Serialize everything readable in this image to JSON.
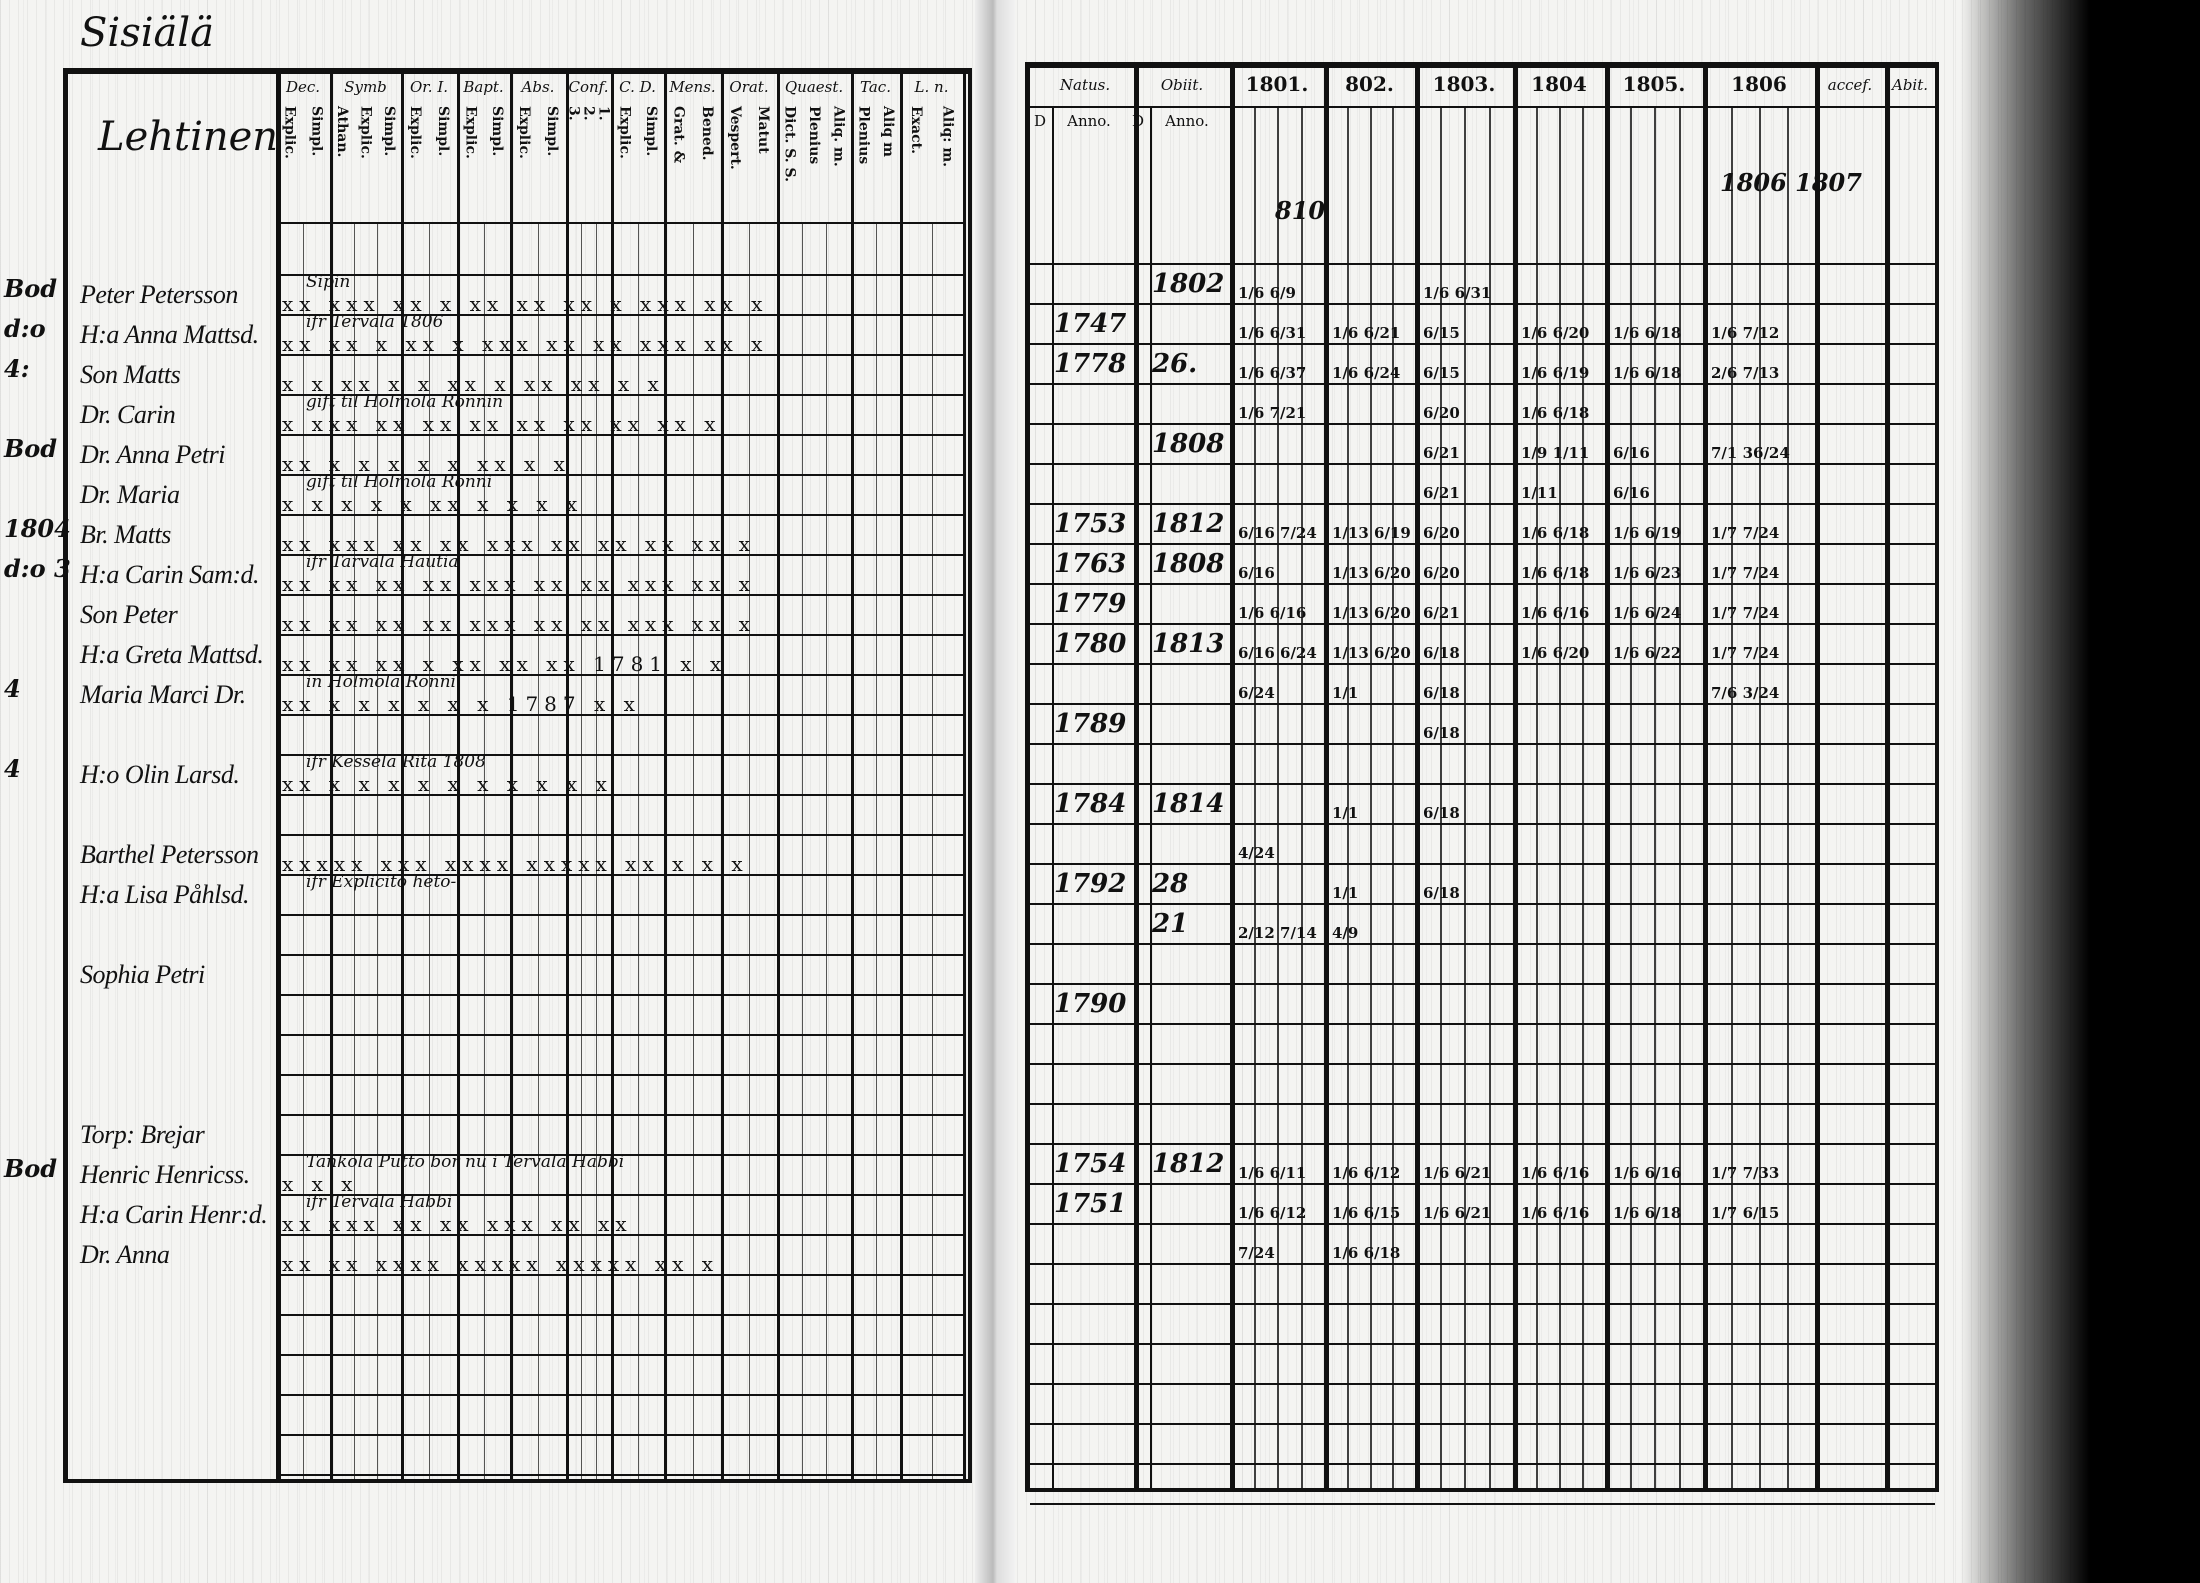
{
  "left_page": {
    "place_title": "Sisiälä",
    "house_name": "Lehtinen",
    "column_groups": [
      {
        "label": "Dec.",
        "subs": [
          "Explic.",
          "Simpl."
        ]
      },
      {
        "label": "Symb",
        "subs": [
          "Athan.",
          "Explic.",
          "Simpl."
        ]
      },
      {
        "label": "Or. I.",
        "subs": [
          "Explic.",
          "Simpl."
        ]
      },
      {
        "label": "Bapt.",
        "subs": [
          "Explic.",
          "Simpl."
        ]
      },
      {
        "label": "Abs.",
        "subs": [
          "Explic.",
          "Simpl."
        ]
      },
      {
        "label": "Conf.",
        "subs": [
          "3.",
          "2.",
          "1."
        ]
      },
      {
        "label": "C. D.",
        "subs": [
          "Explic.",
          "Simpl."
        ]
      },
      {
        "label": "Mens.",
        "subs": [
          "Grat. &",
          "Bened."
        ]
      },
      {
        "label": "Orat.",
        "subs": [
          "Vespert.",
          "Matut"
        ]
      },
      {
        "label": "Quaest.",
        "subs": [
          "Dict. S. S.",
          "Plenius",
          "Aliq. m."
        ]
      },
      {
        "label": "Tac.",
        "subs": [
          "Plenius",
          "Aliq m"
        ]
      },
      {
        "label": "L. n.",
        "subs": [
          "Exact.",
          "Aliq: m."
        ]
      }
    ],
    "rows": [
      {
        "name": "",
        "marks": "",
        "note": "",
        "margin": ""
      },
      {
        "name": "Peter Petersson",
        "marks": "xx xxx xx x xx xx xx x  xxx xx x",
        "note": "Sipin",
        "margin": "Bod"
      },
      {
        "name": "H:a Anna Mattsd.",
        "marks": "xx xx x xx x xxx xx xx xxx xx x",
        "note": "ifr Tervala 1806",
        "margin": "d:o"
      },
      {
        "name": "Son Matts",
        "marks": "x x  xx x x  xx x  xx xx    x x",
        "note": "",
        "margin": "4:"
      },
      {
        "name": "Dr. Carin",
        "marks": "x xxx xx xx xx xx xx xx   xx x",
        "note": "gift til Holmola Rönnin",
        "margin": ""
      },
      {
        "name": "Dr. Anna Petri",
        "marks": "xx x  x x x  x  xx     x x",
        "note": "",
        "margin": "Bod"
      },
      {
        "name": "Dr. Maria",
        "marks": "x  x x x x  xx  x x      x x",
        "note": "gift til Holmola Rönni",
        "margin": ""
      },
      {
        "name": "Br. Matts",
        "marks": "xx xxx xx xx xxx xx xx xx xx x",
        "note": "",
        "margin": "1804"
      },
      {
        "name": "H:a Carin Sam:d.",
        "marks": "xx xx xx xx xxx xx xx xxx xx x",
        "note": "ifr Tarvala Hautia",
        "margin": "d:o 3"
      },
      {
        "name": "Son Peter",
        "marks": "xx xx xx xx xxx xx xx xxx xx x",
        "note": "",
        "margin": ""
      },
      {
        "name": "H:a Greta Mattsd.",
        "marks": "xx xx xx x xx xx xx 1781 x x",
        "note": "",
        "margin": ""
      },
      {
        "name": "Maria Marci Dr.",
        "marks": "xx x x x x x x  1787   x x",
        "note": "in Holmola Rönni",
        "margin": "4"
      },
      {
        "name": "",
        "marks": "",
        "note": "",
        "margin": ""
      },
      {
        "name": "H:o Olin Larsd.",
        "marks": "xx x x x x x x x x    x x",
        "note": "ifr Kessela Rita 1808",
        "margin": "4"
      },
      {
        "name": "",
        "marks": "",
        "note": "",
        "margin": ""
      },
      {
        "name": "Barthel Petersson",
        "marks": "xxxxx xxx xxxx xxxxx xx x x x",
        "note": "",
        "margin": ""
      },
      {
        "name": "H:a Lisa Påhlsd.",
        "marks": "",
        "note": "ifr Explicito heto-",
        "margin": ""
      },
      {
        "name": "",
        "marks": "",
        "note": "",
        "margin": ""
      },
      {
        "name": "Sophia Petri",
        "marks": "",
        "note": "",
        "margin": ""
      },
      {
        "name": "",
        "marks": "",
        "note": "",
        "margin": ""
      },
      {
        "name": "",
        "marks": "",
        "note": "",
        "margin": ""
      },
      {
        "name": "",
        "marks": "",
        "note": "",
        "margin": ""
      },
      {
        "name": "Torp: Brejar",
        "marks": "",
        "note": "",
        "margin": ""
      },
      {
        "name": "Henric Henricss.",
        "marks": "x x x",
        "note": "Tankola Putto bor nu i Tervala Habbi",
        "margin": "Bod"
      },
      {
        "name": "H:a Carin Henr:d.",
        "marks": "xx xxx xx xx xxx xx xx",
        "note": "ifr Tervala Habbi",
        "margin": ""
      },
      {
        "name": "Dr. Anna",
        "marks": "xx xx xxxx xxxxx xxxxx     xx x",
        "note": "",
        "margin": ""
      }
    ]
  },
  "right_page": {
    "header": {
      "natus": "Natus.",
      "obiit": "Obiit.",
      "d": "D",
      "anno": "Anno.",
      "years": [
        "1801.",
        "802.",
        "1803.",
        "1804",
        "1805.",
        "1806"
      ],
      "accesf": "accef.",
      "abit": "Abit."
    },
    "annotation": "1806 1807",
    "top_note": "810",
    "rows": [
      {
        "natus": "",
        "obiit": "",
        "fracs": []
      },
      {
        "natus": "",
        "obiit": "1802",
        "fracs": [
          "1/6 6/9",
          "",
          "1/6 6/31",
          "",
          "",
          ""
        ]
      },
      {
        "natus": "1747",
        "obiit": "",
        "fracs": [
          "1/6 6/31",
          "1/6 6/21",
          "6/15",
          "1/6 6/20",
          "1/6 6/18",
          "1/6 7/12"
        ]
      },
      {
        "natus": "1778",
        "obiit": "26.",
        "fracs": [
          "1/6 6/37",
          "1/6 6/24",
          "6/15",
          "1/6 6/19",
          "1/6 6/18",
          "2/6 7/13"
        ]
      },
      {
        "natus": "",
        "obiit": "",
        "fracs": [
          "1/6 7/21",
          "",
          "6/20",
          "1/6 6/18",
          "",
          ""
        ]
      },
      {
        "natus": "",
        "obiit": "1808",
        "fracs": [
          "",
          "",
          "6/21",
          "1/9 1/11",
          "6/16",
          "7/1 36/24"
        ]
      },
      {
        "natus": "",
        "obiit": "",
        "fracs": [
          "",
          "",
          "6/21",
          "1/11",
          "6/16",
          ""
        ]
      },
      {
        "natus": "1753",
        "obiit": "1812",
        "fracs": [
          "6/16 7/24",
          "1/13 6/19",
          "6/20",
          "1/6 6/18",
          "1/6 6/19",
          "1/7 7/24"
        ]
      },
      {
        "natus": "1763",
        "obiit": "1808",
        "fracs": [
          "6/16",
          "1/13 6/20",
          "6/20",
          "1/6 6/18",
          "1/6 6/23",
          "1/7 7/24"
        ]
      },
      {
        "natus": "1779",
        "obiit": "",
        "fracs": [
          "1/6 6/16",
          "1/13 6/20",
          "6/21",
          "1/6 6/16",
          "1/6 6/24",
          "1/7 7/24"
        ]
      },
      {
        "natus": "1780",
        "obiit": "1813",
        "fracs": [
          "6/16 6/24",
          "1/13 6/20",
          "6/18",
          "1/6 6/20",
          "1/6 6/22",
          "1/7 7/24"
        ]
      },
      {
        "natus": "",
        "obiit": "",
        "fracs": [
          "6/24",
          "1/1",
          "6/18",
          "",
          "",
          "7/6 3/24"
        ]
      },
      {
        "natus": "1789",
        "obiit": "",
        "fracs": [
          "",
          "",
          "6/18",
          "",
          "",
          ""
        ]
      },
      {
        "natus": "",
        "obiit": "",
        "fracs": []
      },
      {
        "natus": "1784",
        "obiit": "1814",
        "fracs": [
          "",
          "1/1",
          "6/18",
          "",
          "",
          ""
        ]
      },
      {
        "natus": "",
        "obiit": "",
        "fracs": [
          "4/24",
          "",
          "",
          "",
          "",
          ""
        ]
      },
      {
        "natus": "1792",
        "obiit": "28",
        "fracs": [
          "",
          "1/1",
          "6/18",
          "",
          "",
          ""
        ]
      },
      {
        "natus": "",
        "obiit": "21",
        "fracs": [
          "2/12 7/14",
          "4/9",
          "",
          "",
          "",
          ""
        ]
      },
      {
        "natus": "",
        "obiit": "",
        "fracs": []
      },
      {
        "natus": "1790",
        "obiit": "",
        "fracs": []
      },
      {
        "natus": "",
        "obiit": "",
        "fracs": []
      },
      {
        "natus": "",
        "obiit": "",
        "fracs": []
      },
      {
        "natus": "",
        "obiit": "",
        "fracs": []
      },
      {
        "natus": "1754",
        "obiit": "1812",
        "fracs": [
          "1/6 6/11",
          "1/6 6/12",
          "1/6 6/21",
          "1/6 6/16",
          "1/6 6/16",
          "1/7 7/33"
        ]
      },
      {
        "natus": "1751",
        "obiit": "",
        "fracs": [
          "1/6 6/12",
          "1/6 6/15",
          "1/6 6/21",
          "1/6 6/16",
          "1/6 6/18",
          "1/7 6/15"
        ]
      },
      {
        "natus": "",
        "obiit": "",
        "fracs": [
          "7/24",
          "1/6 6/18",
          "",
          "",
          "",
          ""
        ]
      }
    ]
  }
}
